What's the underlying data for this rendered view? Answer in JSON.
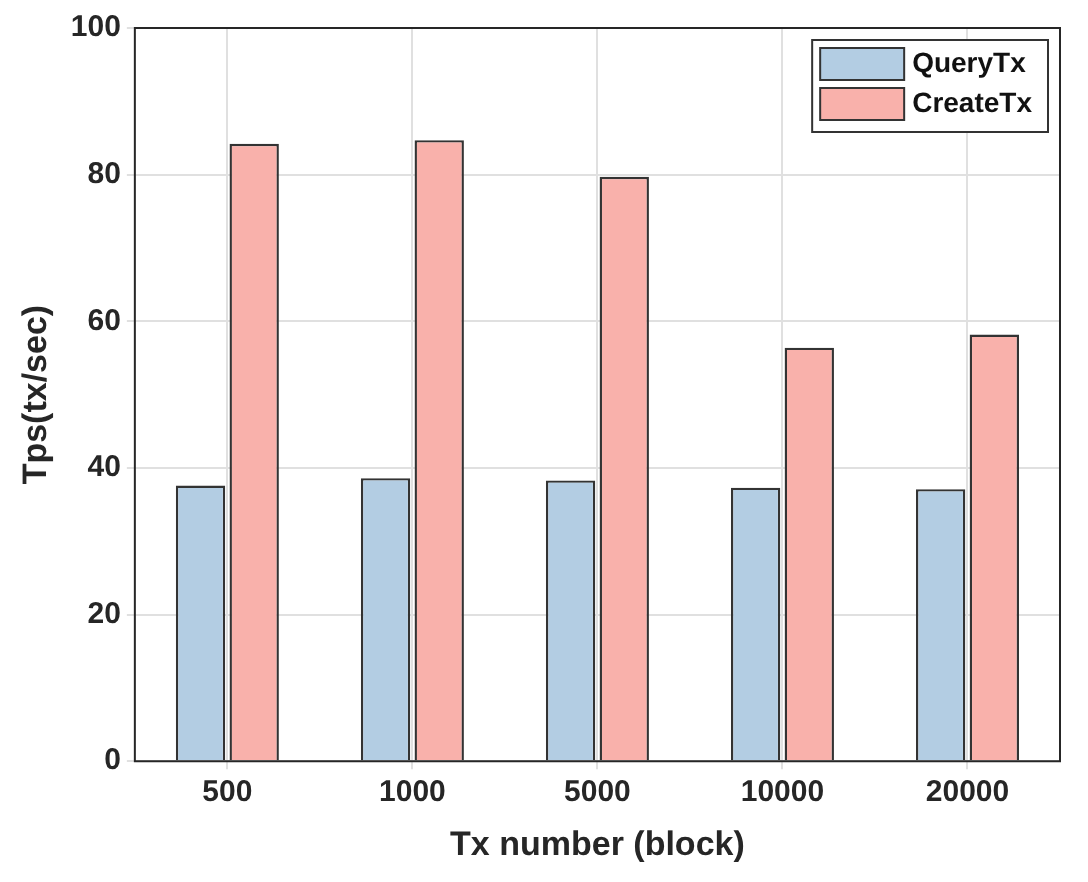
{
  "chart_data": {
    "type": "bar",
    "xlabel": "Tx number (block)",
    "ylabel": "Tps(tx/sec)",
    "categories": [
      "500",
      "1000",
      "5000",
      "10000",
      "20000"
    ],
    "series": [
      {
        "name": "QueryTx",
        "color": "#b3cde3",
        "values": [
          37.6,
          38.6,
          38.3,
          37.3,
          37.1
        ]
      },
      {
        "name": "CreateTx",
        "color": "#f9b1ab",
        "values": [
          84.2,
          84.7,
          79.7,
          56.4,
          58.2
        ]
      }
    ],
    "ylim": [
      0,
      100
    ],
    "yticks": [
      0,
      20,
      40,
      60,
      80,
      100
    ],
    "grid": true,
    "legend": "top right"
  }
}
